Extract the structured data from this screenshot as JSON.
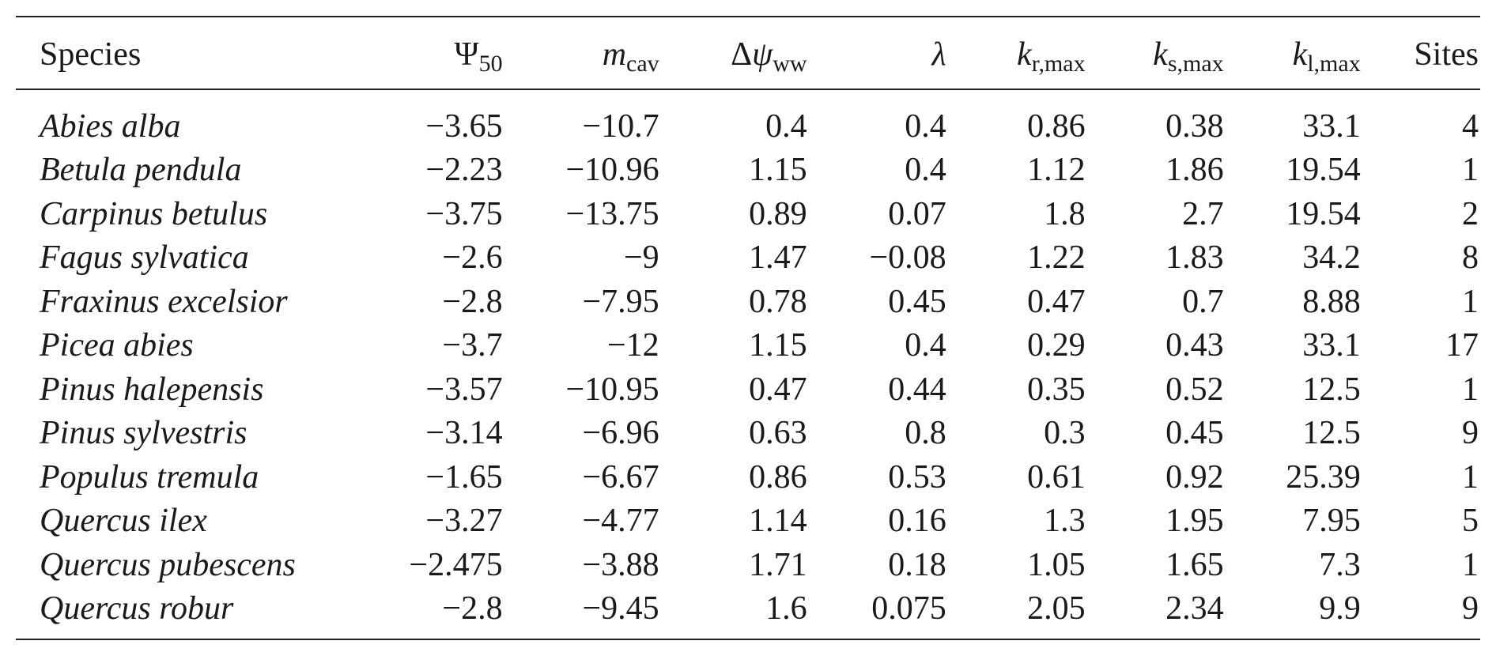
{
  "table": {
    "headers": {
      "species": "Species",
      "psi50": {
        "symbol": "Ψ",
        "sub": "50"
      },
      "mcav": {
        "symbol": "m",
        "sub": "cav"
      },
      "dpsi": {
        "prefix": "Δ",
        "symbol": "ψ",
        "sub": "ww"
      },
      "lambda": {
        "symbol": "λ"
      },
      "krmax": {
        "symbol": "k",
        "sub": "r,max"
      },
      "ksmax": {
        "symbol": "k",
        "sub": "s,max"
      },
      "klmax": {
        "symbol": "k",
        "sub": "l,max"
      },
      "sites": "Sites"
    },
    "rows": [
      {
        "species": "Abies alba",
        "psi50": "−3.65",
        "mcav": "−10.7",
        "dpsi": "0.4",
        "lambda": "0.4",
        "krmax": "0.86",
        "ksmax": "0.38",
        "klmax": "33.1",
        "sites": "4"
      },
      {
        "species": "Betula pendula",
        "psi50": "−2.23",
        "mcav": "−10.96",
        "dpsi": "1.15",
        "lambda": "0.4",
        "krmax": "1.12",
        "ksmax": "1.86",
        "klmax": "19.54",
        "sites": "1"
      },
      {
        "species": "Carpinus betulus",
        "psi50": "−3.75",
        "mcav": "−13.75",
        "dpsi": "0.89",
        "lambda": "0.07",
        "krmax": "1.8",
        "ksmax": "2.7",
        "klmax": "19.54",
        "sites": "2"
      },
      {
        "species": "Fagus sylvatica",
        "psi50": "−2.6",
        "mcav": "−9",
        "dpsi": "1.47",
        "lambda": "−0.08",
        "krmax": "1.22",
        "ksmax": "1.83",
        "klmax": "34.2",
        "sites": "8"
      },
      {
        "species": "Fraxinus excelsior",
        "psi50": "−2.8",
        "mcav": "−7.95",
        "dpsi": "0.78",
        "lambda": "0.45",
        "krmax": "0.47",
        "ksmax": "0.7",
        "klmax": "8.88",
        "sites": "1"
      },
      {
        "species": "Picea abies",
        "psi50": "−3.7",
        "mcav": "−12",
        "dpsi": "1.15",
        "lambda": "0.4",
        "krmax": "0.29",
        "ksmax": "0.43",
        "klmax": "33.1",
        "sites": "17"
      },
      {
        "species": "Pinus halepensis",
        "psi50": "−3.57",
        "mcav": "−10.95",
        "dpsi": "0.47",
        "lambda": "0.44",
        "krmax": "0.35",
        "ksmax": "0.52",
        "klmax": "12.5",
        "sites": "1"
      },
      {
        "species": "Pinus sylvestris",
        "psi50": "−3.14",
        "mcav": "−6.96",
        "dpsi": "0.63",
        "lambda": "0.8",
        "krmax": "0.3",
        "ksmax": "0.45",
        "klmax": "12.5",
        "sites": "9"
      },
      {
        "species": "Populus tremula",
        "psi50": "−1.65",
        "mcav": "−6.67",
        "dpsi": "0.86",
        "lambda": "0.53",
        "krmax": "0.61",
        "ksmax": "0.92",
        "klmax": "25.39",
        "sites": "1"
      },
      {
        "species": "Quercus ilex",
        "psi50": "−3.27",
        "mcav": "−4.77",
        "dpsi": "1.14",
        "lambda": "0.16",
        "krmax": "1.3",
        "ksmax": "1.95",
        "klmax": "7.95",
        "sites": "5"
      },
      {
        "species": "Quercus pubescens",
        "psi50": "−2.475",
        "mcav": "−3.88",
        "dpsi": "1.71",
        "lambda": "0.18",
        "krmax": "1.05",
        "ksmax": "1.65",
        "klmax": "7.3",
        "sites": "1"
      },
      {
        "species": "Quercus robur",
        "psi50": "−2.8",
        "mcav": "−9.45",
        "dpsi": "1.6",
        "lambda": "0.075",
        "krmax": "2.05",
        "ksmax": "2.34",
        "klmax": "9.9",
        "sites": "9"
      }
    ]
  }
}
